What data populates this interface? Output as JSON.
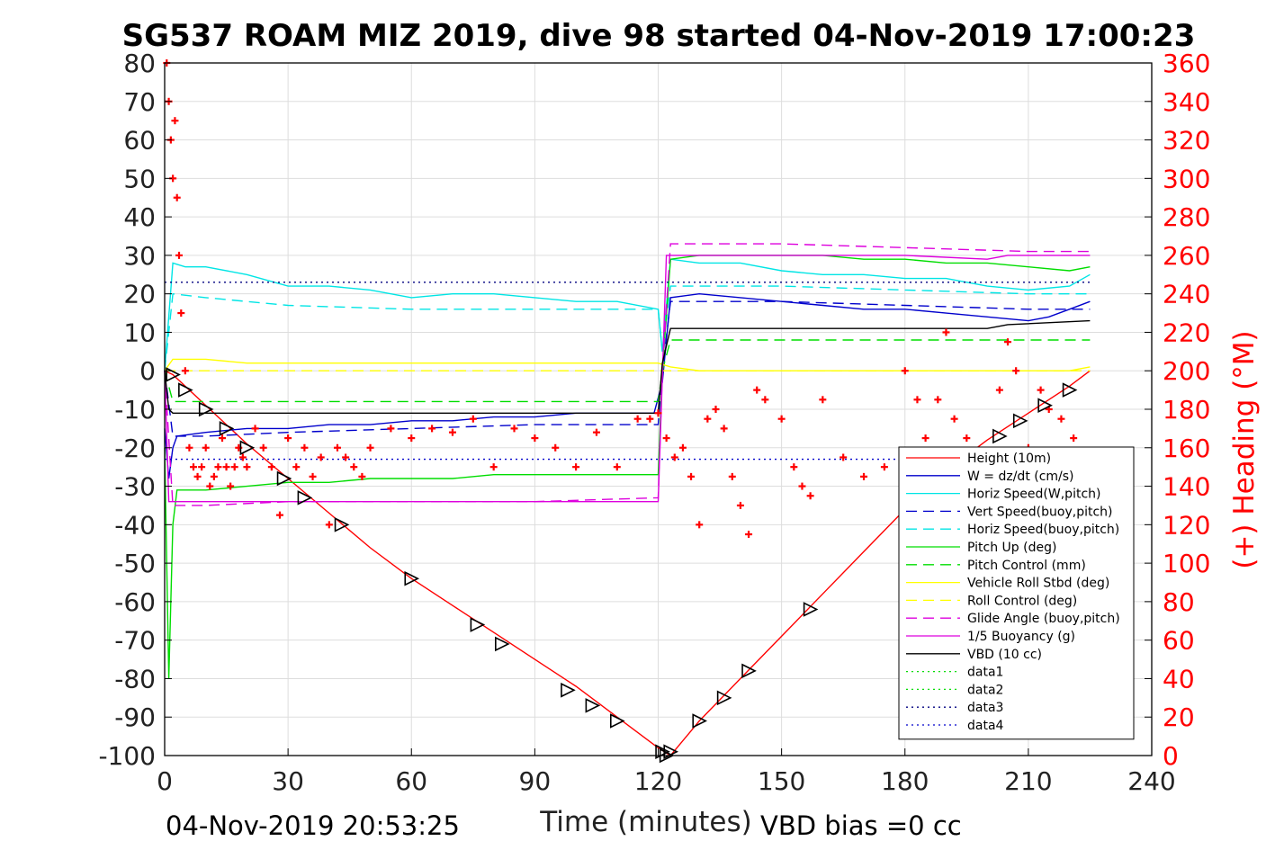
{
  "chart_data": {
    "type": "line",
    "title": "SG537 ROAM MIZ 2019, dive 98 started 04-Nov-2019 17:00:23",
    "xlabel": "Time (minutes)",
    "ylabel_right": "(+) Heading (°M)",
    "xlim": [
      0,
      240
    ],
    "ylim_left": [
      -100,
      80
    ],
    "ylim_right": [
      0,
      360
    ],
    "xticks": [
      "0",
      "30",
      "60",
      "90",
      "120",
      "150",
      "180",
      "210",
      "240"
    ],
    "yticks_left": [
      "80",
      "70",
      "60",
      "50",
      "40",
      "30",
      "20",
      "10",
      "0",
      "-10",
      "-20",
      "-30",
      "-40",
      "-50",
      "-60",
      "-70",
      "-80",
      "-90",
      "-100"
    ],
    "yticks_right": [
      "360",
      "340",
      "320",
      "300",
      "280",
      "260",
      "240",
      "220",
      "200",
      "180",
      "160",
      "140",
      "120",
      "100",
      "80",
      "60",
      "40",
      "20",
      "0"
    ],
    "grid": true,
    "legend_position": "bottom-right",
    "footer_left": "04-Nov-2019 20:53:25",
    "footer_right": "VBD bias =0 cc",
    "legend": [
      {
        "label": "Height (10m)",
        "color": "#ff0000",
        "dash": "solid"
      },
      {
        "label": "W = dz/dt (cm/s)",
        "color": "#0000cc",
        "dash": "solid"
      },
      {
        "label": "Horiz Speed(W,pitch)",
        "color": "#00e5e5",
        "dash": "solid"
      },
      {
        "label": "Vert Speed(buoy,pitch)",
        "color": "#0000cc",
        "dash": "dashed"
      },
      {
        "label": "Horiz Speed(buoy,pitch)",
        "color": "#00e5e5",
        "dash": "dashed"
      },
      {
        "label": "Pitch Up (deg)",
        "color": "#00dd00",
        "dash": "solid"
      },
      {
        "label": "Pitch Control (mm)",
        "color": "#00dd00",
        "dash": "dashed"
      },
      {
        "label": "Vehicle Roll Stbd (deg)",
        "color": "#ffff00",
        "dash": "solid"
      },
      {
        "label": "Roll Control (deg)",
        "color": "#ffff00",
        "dash": "dashed"
      },
      {
        "label": "Glide Angle (buoy,pitch)",
        "color": "#dd00dd",
        "dash": "dashed"
      },
      {
        "label": "1/5 Buoyancy (g)",
        "color": "#dd00dd",
        "dash": "solid"
      },
      {
        "label": "VBD (10 cc)",
        "color": "#000000",
        "dash": "solid"
      },
      {
        "label": "data1",
        "color": "#00dd00",
        "dash": "dotted"
      },
      {
        "label": "data2",
        "color": "#00dd00",
        "dash": "dotted"
      },
      {
        "label": "data3",
        "color": "#000080",
        "dash": "dotted"
      },
      {
        "label": "data4",
        "color": "#0000cc",
        "dash": "dotted"
      }
    ],
    "series": [
      {
        "name": "Height (10m)",
        "color": "#ff0000",
        "dash": "solid",
        "x": [
          0,
          2,
          10,
          20,
          30,
          40,
          50,
          60,
          70,
          80,
          90,
          100,
          110,
          120,
          123,
          130,
          140,
          150,
          160,
          170,
          180,
          190,
          200,
          210,
          220,
          225
        ],
        "y": [
          0,
          -1,
          -9,
          -19,
          -28,
          -37,
          -46,
          -54,
          -61,
          -68,
          -75,
          -82,
          -90,
          -98,
          -100,
          -91,
          -80,
          -69,
          -58,
          -47,
          -36,
          -26,
          -18,
          -11,
          -4,
          0
        ]
      },
      {
        "name": "W = dz/dt (cm/s)",
        "color": "#0000cc",
        "dash": "solid",
        "x": [
          0,
          1,
          2,
          3,
          10,
          20,
          30,
          40,
          50,
          60,
          70,
          80,
          90,
          100,
          110,
          119,
          121,
          123,
          130,
          140,
          150,
          160,
          170,
          180,
          190,
          200,
          210,
          215,
          220,
          225
        ],
        "y": [
          -15,
          -28,
          -20,
          -17,
          -16,
          -15,
          -15,
          -14,
          -14,
          -13,
          -13,
          -12,
          -12,
          -11,
          -11,
          -11,
          -3,
          19,
          20,
          19,
          18,
          17,
          16,
          16,
          15,
          14,
          13,
          14,
          16,
          18
        ]
      },
      {
        "name": "Horiz Speed(W,pitch)",
        "color": "#00e5e5",
        "dash": "solid",
        "x": [
          0,
          2,
          5,
          10,
          20,
          30,
          40,
          50,
          60,
          70,
          80,
          90,
          100,
          110,
          120,
          121,
          123,
          130,
          140,
          150,
          160,
          170,
          180,
          190,
          200,
          210,
          220,
          225
        ],
        "y": [
          0,
          28,
          27,
          27,
          25,
          22,
          22,
          21,
          19,
          20,
          20,
          19,
          18,
          18,
          16,
          5,
          29,
          28,
          28,
          26,
          25,
          25,
          24,
          24,
          22,
          21,
          22,
          25
        ]
      },
      {
        "name": "Vert Speed(buoy,pitch)",
        "color": "#0000cc",
        "dash": "dashed",
        "x": [
          0,
          2,
          10,
          30,
          60,
          90,
          120,
          121,
          123,
          150,
          180,
          210,
          225
        ],
        "y": [
          0,
          -17,
          -17,
          -16,
          -15,
          -14,
          -14,
          0,
          18,
          18,
          17,
          16,
          16
        ]
      },
      {
        "name": "Horiz Speed(buoy,pitch)",
        "color": "#00e5e5",
        "dash": "dashed",
        "x": [
          0,
          2,
          10,
          30,
          60,
          90,
          120,
          121,
          123,
          150,
          180,
          210,
          225
        ],
        "y": [
          0,
          20,
          19,
          17,
          16,
          16,
          16,
          5,
          22,
          22,
          21,
          20,
          20
        ]
      },
      {
        "name": "Pitch Up (deg)",
        "color": "#00dd00",
        "dash": "solid",
        "x": [
          0,
          1,
          2,
          3,
          10,
          20,
          30,
          40,
          50,
          60,
          70,
          80,
          90,
          100,
          110,
          120,
          121,
          123,
          130,
          140,
          150,
          160,
          170,
          180,
          190,
          200,
          210,
          220,
          225
        ],
        "y": [
          -20,
          -80,
          -40,
          -31,
          -31,
          -30,
          -29,
          -29,
          -28,
          -28,
          -28,
          -27,
          -27,
          -27,
          -27,
          -27,
          0,
          29,
          30,
          30,
          30,
          30,
          29,
          29,
          28,
          28,
          27,
          26,
          27
        ]
      },
      {
        "name": "Pitch Control (mm)",
        "color": "#00dd00",
        "dash": "dashed",
        "x": [
          0,
          2,
          10,
          60,
          120,
          121,
          123,
          180,
          225
        ],
        "y": [
          0,
          -8,
          -8,
          -8,
          -8,
          0,
          8,
          8,
          8
        ]
      },
      {
        "name": "Vehicle Roll Stbd (deg)",
        "color": "#ffff00",
        "dash": "solid",
        "x": [
          0,
          2,
          10,
          20,
          30,
          40,
          50,
          60,
          70,
          80,
          90,
          100,
          110,
          120,
          123,
          130,
          140,
          150,
          160,
          170,
          180,
          190,
          200,
          210,
          220,
          225
        ],
        "y": [
          0,
          3,
          3,
          2,
          2,
          2,
          2,
          2,
          2,
          2,
          2,
          2,
          2,
          2,
          1,
          0,
          0,
          0,
          0,
          0,
          0,
          0,
          0,
          0,
          0,
          1
        ]
      },
      {
        "name": "Roll Control (deg)",
        "color": "#ffff00",
        "dash": "dashed",
        "x": [
          0,
          2,
          30,
          60,
          90,
          120,
          150,
          180,
          210,
          225
        ],
        "y": [
          0,
          0,
          0,
          0,
          0,
          0,
          0,
          0,
          0,
          0
        ]
      },
      {
        "name": "Glide Angle (buoy,pitch)",
        "color": "#dd00dd",
        "dash": "dashed",
        "x": [
          0,
          2,
          10,
          30,
          60,
          90,
          120,
          121,
          123,
          150,
          180,
          210,
          225
        ],
        "y": [
          0,
          -35,
          -35,
          -34,
          -34,
          -34,
          -33,
          0,
          33,
          33,
          32,
          31,
          31
        ]
      },
      {
        "name": "1/5 Buoyancy (g)",
        "color": "#dd00dd",
        "dash": "solid",
        "x": [
          0,
          1,
          2,
          60,
          120,
          122,
          180,
          200,
          205,
          225
        ],
        "y": [
          0,
          -34,
          -34,
          -34,
          -34,
          30,
          30,
          29,
          30,
          30
        ]
      },
      {
        "name": "VBD (10 cc)",
        "color": "#000000",
        "dash": "solid",
        "x": [
          0,
          1,
          2,
          60,
          120,
          121,
          123,
          200,
          205,
          225
        ],
        "y": [
          0,
          -10,
          -11,
          -11,
          -11,
          2,
          11,
          11,
          12,
          13
        ]
      },
      {
        "name": "data3",
        "color": "#000080",
        "dash": "dotted",
        "x": [
          0,
          225
        ],
        "y": [
          23,
          23
        ]
      },
      {
        "name": "data4",
        "color": "#0000cc",
        "dash": "dotted",
        "x": [
          0,
          225
        ],
        "y": [
          -23,
          -23
        ]
      }
    ],
    "heading_series": {
      "name": "(+) Heading (°M)",
      "color": "#ff0000",
      "marker": "+",
      "x": [
        0.5,
        1,
        1.5,
        2,
        2.5,
        3,
        3.5,
        4,
        5,
        6,
        7,
        8,
        9,
        10,
        11,
        12,
        13,
        14,
        15,
        16,
        17,
        18,
        19,
        20,
        22,
        24,
        26,
        28,
        30,
        32,
        34,
        36,
        38,
        40,
        42,
        44,
        46,
        48,
        50,
        55,
        60,
        65,
        70,
        75,
        80,
        85,
        90,
        95,
        100,
        105,
        110,
        115,
        118,
        120,
        122,
        124,
        126,
        128,
        130,
        132,
        134,
        136,
        138,
        140,
        142,
        144,
        146,
        150,
        153,
        155,
        157,
        160,
        165,
        170,
        175,
        180,
        183,
        185,
        188,
        190,
        192,
        195,
        200,
        203,
        205,
        207,
        210,
        213,
        215,
        218,
        221
      ],
      "y": [
        360,
        340,
        320,
        300,
        330,
        290,
        260,
        230,
        200,
        160,
        150,
        145,
        150,
        160,
        140,
        145,
        150,
        165,
        150,
        140,
        150,
        160,
        155,
        150,
        170,
        160,
        150,
        125,
        165,
        150,
        160,
        145,
        155,
        120,
        160,
        155,
        150,
        145,
        160,
        170,
        165,
        170,
        168,
        175,
        150,
        170,
        165,
        160,
        150,
        168,
        150,
        175,
        175,
        178,
        165,
        155,
        160,
        145,
        120,
        175,
        180,
        170,
        145,
        130,
        115,
        190,
        185,
        175,
        150,
        140,
        135,
        185,
        155,
        145,
        150,
        200,
        185,
        165,
        185,
        220,
        175,
        165,
        150,
        190,
        215,
        200,
        160,
        190,
        180,
        175,
        165
      ]
    },
    "markers": {
      "name": "Height (10m)",
      "color": "#000000",
      "shape": "triangle",
      "x": [
        2,
        5,
        10,
        15,
        20,
        29,
        34,
        43,
        60,
        76,
        82,
        98,
        104,
        110,
        121,
        122,
        123,
        130,
        136,
        142,
        157,
        203,
        208,
        214,
        220
      ],
      "y": [
        -1,
        -5,
        -10,
        -15,
        -20,
        -28,
        -33,
        -40,
        -54,
        -66,
        -71,
        -83,
        -87,
        -91,
        -99,
        -100,
        -99,
        -91,
        -85,
        -78,
        -62,
        -17,
        -13,
        -9,
        -5
      ]
    }
  }
}
